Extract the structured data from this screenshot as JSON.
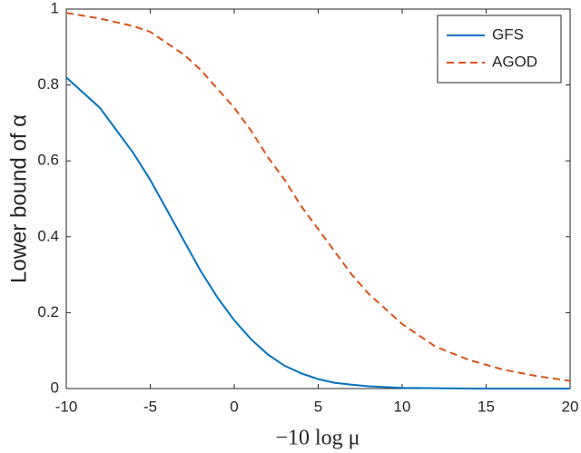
{
  "chart_data": {
    "type": "line",
    "xlabel": "−10 log μ",
    "ylabel": "Lower bound of α",
    "x": [
      -10,
      -8,
      -6,
      -5,
      -4,
      -3,
      -2,
      -1,
      0,
      1,
      2,
      3,
      4,
      5,
      6,
      7,
      8,
      10,
      12,
      14,
      16,
      18,
      20
    ],
    "series": [
      {
        "name": "GFS",
        "color": "#0072bd",
        "dash": false,
        "values": [
          0.82,
          0.74,
          0.62,
          0.55,
          0.47,
          0.39,
          0.31,
          0.24,
          0.18,
          0.13,
          0.09,
          0.06,
          0.04,
          0.025,
          0.015,
          0.01,
          0.006,
          0.002,
          0.001,
          0,
          0,
          0,
          0
        ]
      },
      {
        "name": "AGOD",
        "color": "#d95319",
        "dash": true,
        "values": [
          0.99,
          0.975,
          0.955,
          0.94,
          0.91,
          0.88,
          0.84,
          0.79,
          0.74,
          0.68,
          0.61,
          0.55,
          0.48,
          0.42,
          0.36,
          0.3,
          0.25,
          0.17,
          0.11,
          0.075,
          0.05,
          0.033,
          0.02
        ]
      }
    ],
    "xlim": [
      -10,
      20
    ],
    "xticks": [
      -10,
      -5,
      0,
      5,
      10,
      15,
      20
    ],
    "ylim": [
      0,
      1
    ],
    "yticks": [
      0,
      0.2,
      0.4,
      0.6,
      0.8,
      1
    ],
    "grid": false,
    "legend": "upper right"
  }
}
